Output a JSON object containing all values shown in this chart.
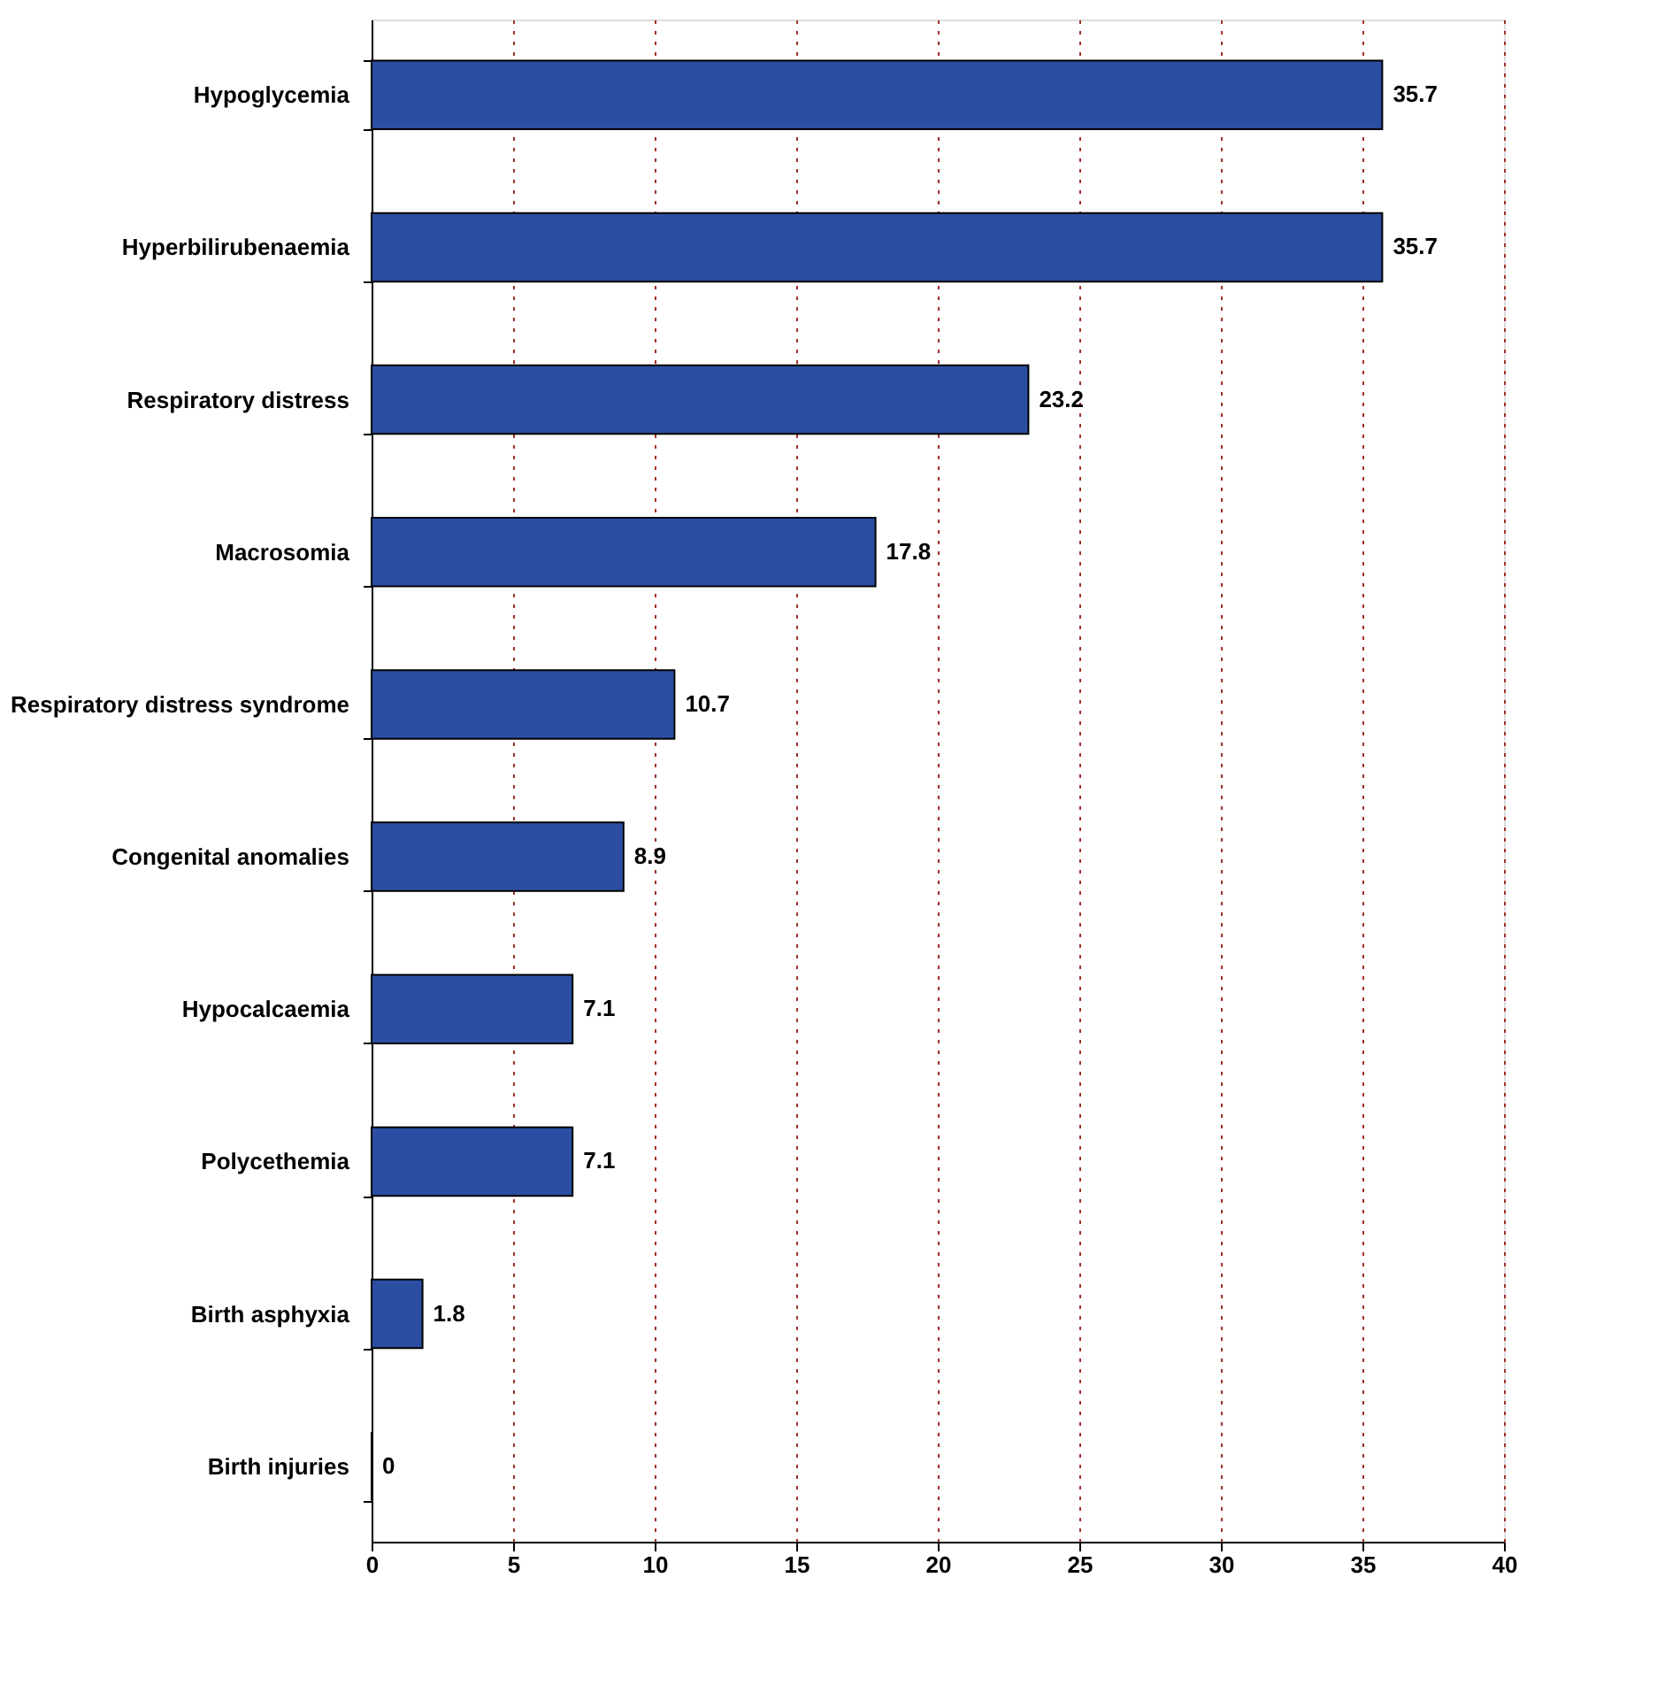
{
  "chart_data": {
    "type": "bar",
    "orientation": "horizontal",
    "categories": [
      "Hypoglycemia",
      "Hyperbilirubenaemia",
      "Respiratory distress",
      "Macrosomia",
      "Respiratory distress syndrome",
      "Congenital anomalies",
      "Hypocalcaemia",
      "Polycethemia",
      "Birth asphyxia",
      "Birth injuries"
    ],
    "values": [
      35.7,
      35.7,
      23.2,
      17.8,
      10.7,
      8.9,
      7.1,
      7.1,
      1.8,
      0
    ],
    "color": "#2b4ea3",
    "xlim": [
      0,
      40
    ],
    "xticks": [
      0,
      5,
      10,
      15,
      20,
      25,
      30,
      35,
      40
    ],
    "grid": "x",
    "data_labels": true
  }
}
